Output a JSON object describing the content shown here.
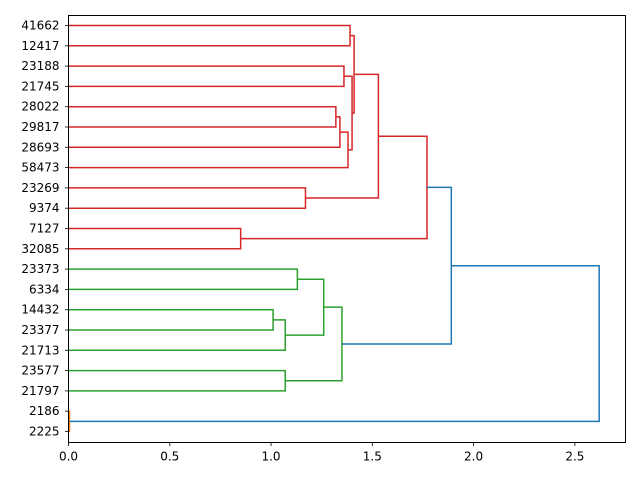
{
  "chart_data": {
    "type": "dendrogram",
    "orientation": "left-to-right",
    "title": "",
    "xlabel": "",
    "ylabel": "",
    "xlim": [
      0,
      2.75
    ],
    "x_ticks": [
      0.0,
      0.5,
      1.0,
      1.5,
      2.0,
      2.5
    ],
    "x_tick_labels": [
      "0.0",
      "0.5",
      "1.0",
      "1.5",
      "2.0",
      "2.5"
    ],
    "leaves": [
      "41662",
      "12417",
      "23188",
      "21745",
      "28022",
      "29817",
      "28693",
      "58473",
      "23269",
      "9374",
      "7127",
      "32085",
      "23373",
      "6334",
      "14432",
      "23377",
      "21713",
      "23577",
      "21797",
      "2186",
      "2225"
    ],
    "colors": {
      "red": "#d62728",
      "green": "#2ca02c",
      "orange": "#ff7f0e",
      "blue": "#1f77b4"
    },
    "links": [
      {
        "a": "41662",
        "b": "12417",
        "height": 1.39,
        "color": "red"
      },
      {
        "a": "23188",
        "b": "21745",
        "height": 1.36,
        "color": "red"
      },
      {
        "a": "28022",
        "b": "29817",
        "height": 1.32,
        "color": "red"
      },
      {
        "a": "L3",
        "b": "28693",
        "height": 1.34,
        "color": "red"
      },
      {
        "a": "L4",
        "b": "58473",
        "height": 1.38,
        "color": "red"
      },
      {
        "a": "L2",
        "b": "L5",
        "height": 1.4,
        "color": "red"
      },
      {
        "a": "L1",
        "b": "L6",
        "height": 1.41,
        "color": "red"
      },
      {
        "a": "23269",
        "b": "9374",
        "height": 1.17,
        "color": "red"
      },
      {
        "a": "L7",
        "b": "L8",
        "height": 1.53,
        "color": "red"
      },
      {
        "a": "7127",
        "b": "32085",
        "height": 0.85,
        "color": "red"
      },
      {
        "a": "L9",
        "b": "L10",
        "height": 1.77,
        "color": "red"
      },
      {
        "a": "23373",
        "b": "6334",
        "height": 1.13,
        "color": "green"
      },
      {
        "a": "14432",
        "b": "23377",
        "height": 1.01,
        "color": "green"
      },
      {
        "a": "L13",
        "b": "21713",
        "height": 1.07,
        "color": "green"
      },
      {
        "a": "L12",
        "b": "L14",
        "height": 1.26,
        "color": "green"
      },
      {
        "a": "23577",
        "b": "21797",
        "height": 1.07,
        "color": "green"
      },
      {
        "a": "L15",
        "b": "L16",
        "height": 1.35,
        "color": "green"
      },
      {
        "a": "L11",
        "b": "L17",
        "height": 1.89,
        "color": "blue"
      },
      {
        "a": "2186",
        "b": "2225",
        "height": 0.005,
        "color": "orange"
      },
      {
        "a": "L18",
        "b": "L19",
        "height": 2.62,
        "color": "blue"
      }
    ]
  }
}
